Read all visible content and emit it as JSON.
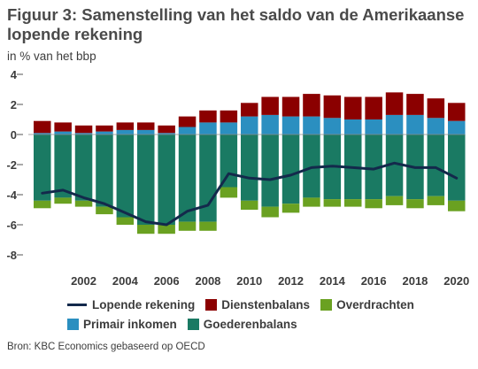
{
  "header": {
    "title": "Figuur 3: Samenstelling van het saldo van de Amerikaanse lopende rekening",
    "subtitle": "in % van het bbp"
  },
  "footer": {
    "source": "Bron: KBC Economics gebaseerd op OECD"
  },
  "colors": {
    "lopende": "#13294b",
    "diensten": "#8b0000",
    "overdrachten": "#6aa121",
    "primair": "#2b8fc0",
    "goederen": "#1a7a63",
    "tickline": "#555555"
  },
  "chart_data": {
    "type": "bar",
    "stacked": true,
    "x": [
      2000,
      2001,
      2002,
      2003,
      2004,
      2005,
      2006,
      2007,
      2008,
      2009,
      2010,
      2011,
      2012,
      2013,
      2014,
      2015,
      2016,
      2017,
      2018,
      2019,
      2020
    ],
    "ylim": [
      -8,
      4
    ],
    "yticks": [
      4,
      2,
      0,
      -2,
      -4,
      -6,
      -8
    ],
    "xtick_labels": [
      2002,
      2004,
      2006,
      2008,
      2010,
      2012,
      2014,
      2016,
      2018,
      2020
    ],
    "legend_placement": "bottom",
    "grid": false,
    "series": [
      {
        "name": "Goederenbalans",
        "key": "goederen",
        "kind": "bar",
        "values": [
          -4.4,
          -4.2,
          -4.4,
          -4.8,
          -5.5,
          -6.0,
          -6.0,
          -5.8,
          -5.8,
          -3.5,
          -4.4,
          -4.8,
          -4.6,
          -4.2,
          -4.3,
          -4.3,
          -4.3,
          -4.1,
          -4.3,
          -4.1,
          -4.4
        ]
      },
      {
        "name": "Overdrachten",
        "key": "overdrachten",
        "kind": "bar",
        "values": [
          -0.5,
          -0.4,
          -0.4,
          -0.5,
          -0.5,
          -0.6,
          -0.6,
          -0.6,
          -0.6,
          -0.7,
          -0.6,
          -0.7,
          -0.6,
          -0.6,
          -0.5,
          -0.5,
          -0.6,
          -0.6,
          -0.6,
          -0.6,
          -0.7
        ]
      },
      {
        "name": "Primair inkomen",
        "key": "primair",
        "kind": "bar",
        "values": [
          0.1,
          0.2,
          0.1,
          0.2,
          0.3,
          0.3,
          0.1,
          0.5,
          0.8,
          0.8,
          1.2,
          1.3,
          1.2,
          1.2,
          1.1,
          1.0,
          1.0,
          1.3,
          1.3,
          1.1,
          0.9
        ]
      },
      {
        "name": "Dienstenbalans",
        "key": "diensten",
        "kind": "bar",
        "values": [
          0.8,
          0.6,
          0.5,
          0.4,
          0.5,
          0.5,
          0.5,
          0.7,
          0.8,
          0.8,
          0.9,
          1.2,
          1.3,
          1.5,
          1.5,
          1.5,
          1.5,
          1.5,
          1.4,
          1.3,
          1.2
        ]
      },
      {
        "name": "Lopende rekening",
        "key": "lopende",
        "kind": "line",
        "values": [
          -3.9,
          -3.7,
          -4.2,
          -4.6,
          -5.2,
          -5.8,
          -6.0,
          -5.1,
          -4.7,
          -2.6,
          -2.9,
          -3.0,
          -2.7,
          -2.2,
          -2.1,
          -2.2,
          -2.3,
          -1.9,
          -2.2,
          -2.2,
          -2.9
        ]
      }
    ]
  }
}
